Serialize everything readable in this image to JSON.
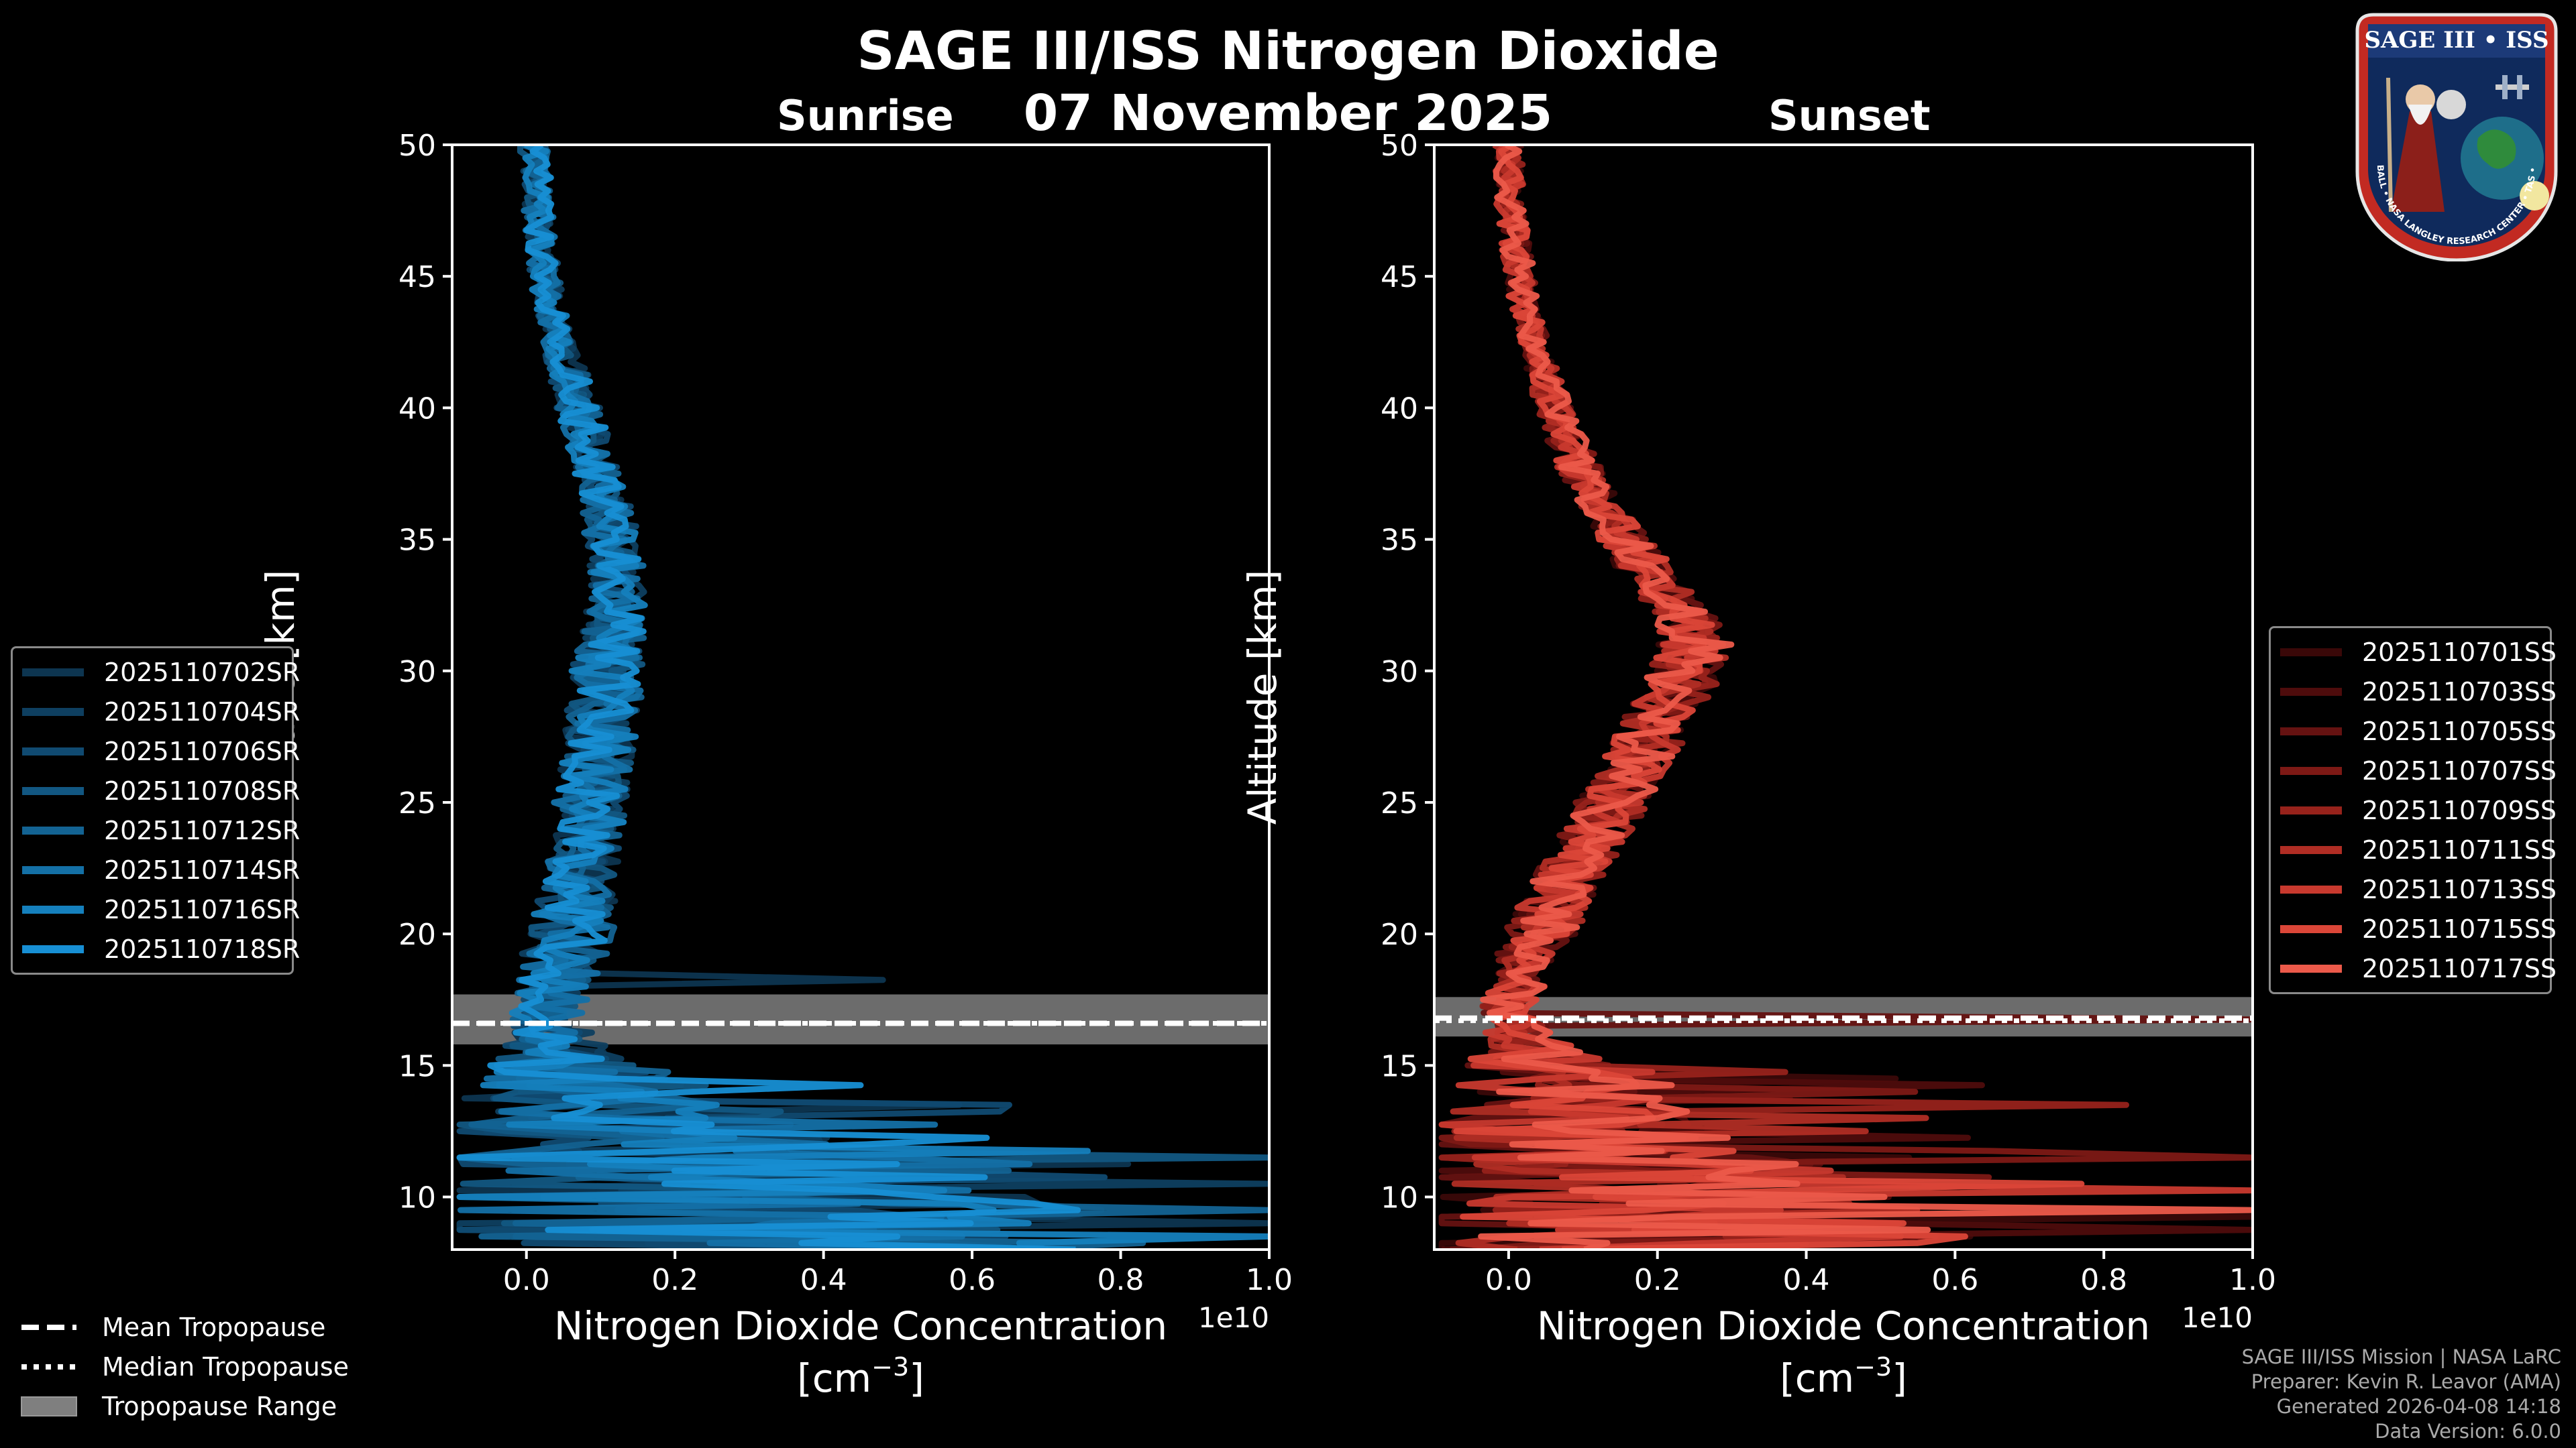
{
  "header": {
    "title": "SAGE III/ISS Nitrogen Dioxide",
    "date": "07 November 2025",
    "sunrise_label": "Sunrise",
    "sunset_label": "Sunset"
  },
  "badge": {
    "text": "SAGE III • ISS",
    "ring_text": "BALL • NASA LANGLEY RESEARCH CENTER • TAS • ESA"
  },
  "footer": {
    "line1": "SAGE III/ISS Mission | NASA LaRC",
    "line2": "Preparer: Kevin R. Leavor (AMA)",
    "line3": "Generated 2026-04-08 14:18",
    "line4": "Data Version: 6.0.0"
  },
  "tropopause_legend": {
    "mean": "Mean Tropopause",
    "median": "Median Tropopause",
    "range": "Tropopause Range"
  },
  "colors": {
    "background": "#000000",
    "sunrise_series": [
      "#0d3550",
      "#0e3f60",
      "#104a71",
      "#125782",
      "#136393",
      "#1470a6",
      "#1580bd",
      "#178fd4"
    ],
    "sunset_series": [
      "#3a0808",
      "#4e0c0c",
      "#651211",
      "#7d1915",
      "#97221b",
      "#b02d24",
      "#c8392e",
      "#db4638",
      "#ec5a4a"
    ],
    "tropopause_band": "#7f7f7f"
  },
  "chart_data": [
    {
      "id": "sunrise",
      "type": "line",
      "title": "Sunrise",
      "xlabel": "Nitrogen Dioxide Concentration",
      "xlabel_units": "[cm",
      "xlabel_exp": "−3",
      "xlabel_close": "]",
      "ylabel": "Altitude [km]",
      "offset_text": "1e10",
      "xlim": [
        -0.1,
        1.0
      ],
      "ylim": [
        8,
        50
      ],
      "xticks": [
        0.0,
        0.2,
        0.4,
        0.6,
        0.8,
        1.0
      ],
      "xtick_labels": [
        "0.0",
        "0.2",
        "0.4",
        "0.6",
        "0.8",
        "1.0"
      ],
      "yticks": [
        10,
        15,
        20,
        25,
        30,
        35,
        40,
        45,
        50
      ],
      "ytick_labels": [
        "10",
        "15",
        "20",
        "25",
        "30",
        "35",
        "40",
        "45",
        "50"
      ],
      "tropopause": {
        "mean": 16.6,
        "median": 16.6,
        "range": [
          15.8,
          17.7
        ]
      },
      "profile_nodes": {
        "altitude": [
          8,
          9,
          10,
          11,
          12,
          13,
          14,
          15,
          16,
          17,
          18,
          19,
          20,
          22,
          24,
          26,
          28,
          30,
          32,
          34,
          36,
          38,
          40,
          42,
          44,
          46,
          48,
          50
        ],
        "mean_no2": [
          0.35,
          0.32,
          0.28,
          0.24,
          0.18,
          0.12,
          0.08,
          0.05,
          0.035,
          0.03,
          0.04,
          0.05,
          0.06,
          0.07,
          0.08,
          0.09,
          0.1,
          0.11,
          0.12,
          0.12,
          0.11,
          0.09,
          0.07,
          0.05,
          0.03,
          0.02,
          0.015,
          0.01
        ],
        "spread": [
          0.5,
          0.5,
          0.45,
          0.4,
          0.3,
          0.22,
          0.16,
          0.1,
          0.06,
          0.05,
          0.05,
          0.06,
          0.06,
          0.05,
          0.05,
          0.05,
          0.05,
          0.05,
          0.04,
          0.04,
          0.035,
          0.03,
          0.03,
          0.025,
          0.02,
          0.02,
          0.02,
          0.02
        ]
      },
      "series": [
        {
          "name": "2025110702SR",
          "spikes": [
            [
              9.0,
              1.0
            ],
            [
              18.2,
              0.48
            ]
          ]
        },
        {
          "name": "2025110704SR",
          "spikes": [
            [
              10.6,
              1.0
            ]
          ]
        },
        {
          "name": "2025110706SR",
          "spikes": [
            [
              13.6,
              0.65
            ]
          ]
        },
        {
          "name": "2025110708SR",
          "spikes": [
            [
              11.5,
              1.0
            ]
          ]
        },
        {
          "name": "2025110712SR",
          "spikes": [
            [
              9.6,
              1.0
            ]
          ]
        },
        {
          "name": "2025110714SR",
          "spikes": [
            [
              12.8,
              0.55
            ]
          ]
        },
        {
          "name": "2025110716SR",
          "spikes": [
            [
              8.6,
              1.0
            ]
          ]
        },
        {
          "name": "2025110718SR",
          "spikes": [
            [
              14.3,
              0.45
            ]
          ]
        }
      ]
    },
    {
      "id": "sunset",
      "type": "line",
      "title": "Sunset",
      "xlabel": "Nitrogen Dioxide Concentration",
      "xlabel_units": "[cm",
      "xlabel_exp": "−3",
      "xlabel_close": "]",
      "ylabel": "Altitude [km]",
      "offset_text": "1e10",
      "xlim": [
        -0.1,
        1.0
      ],
      "ylim": [
        8,
        50
      ],
      "xticks": [
        0.0,
        0.2,
        0.4,
        0.6,
        0.8,
        1.0
      ],
      "xtick_labels": [
        "0.0",
        "0.2",
        "0.4",
        "0.6",
        "0.8",
        "1.0"
      ],
      "yticks": [
        10,
        15,
        20,
        25,
        30,
        35,
        40,
        45,
        50
      ],
      "ytick_labels": [
        "10",
        "15",
        "20",
        "25",
        "30",
        "35",
        "40",
        "45",
        "50"
      ],
      "tropopause": {
        "mean": 16.8,
        "median": 16.7,
        "range": [
          16.1,
          17.6
        ]
      },
      "profile_nodes": {
        "altitude": [
          8,
          9,
          10,
          11,
          12,
          13,
          14,
          15,
          16,
          17,
          18,
          19,
          20,
          22,
          24,
          26,
          28,
          30,
          31,
          32,
          34,
          36,
          38,
          40,
          42,
          44,
          46,
          48,
          50
        ],
        "mean_no2": [
          0.25,
          0.22,
          0.2,
          0.16,
          0.12,
          0.09,
          0.06,
          0.04,
          0.02,
          0.0,
          0.01,
          0.02,
          0.04,
          0.08,
          0.12,
          0.16,
          0.2,
          0.24,
          0.25,
          0.24,
          0.18,
          0.13,
          0.09,
          0.06,
          0.04,
          0.02,
          0.01,
          0.0,
          0.0
        ],
        "spread": [
          0.4,
          0.4,
          0.35,
          0.3,
          0.25,
          0.2,
          0.15,
          0.1,
          0.05,
          0.04,
          0.04,
          0.04,
          0.05,
          0.05,
          0.05,
          0.05,
          0.05,
          0.05,
          0.05,
          0.04,
          0.04,
          0.03,
          0.03,
          0.025,
          0.02,
          0.02,
          0.02,
          0.02,
          0.02
        ]
      },
      "series": [
        {
          "name": "2025110701SS",
          "spikes": [
            [
              9.2,
              1.0
            ]
          ]
        },
        {
          "name": "2025110703SS",
          "spikes": [
            [
              8.8,
              1.0
            ]
          ]
        },
        {
          "name": "2025110705SS",
          "spikes": [
            [
              16.8,
              1.0
            ]
          ]
        },
        {
          "name": "2025110707SS",
          "spikes": [
            [
              11.6,
              1.0
            ]
          ]
        },
        {
          "name": "2025110709SS",
          "spikes": [
            [
              13.6,
              0.83
            ]
          ]
        },
        {
          "name": "2025110711SS",
          "spikes": [
            [
              12.6,
              0.48
            ]
          ]
        },
        {
          "name": "2025110713SS",
          "spikes": [
            [
              10.3,
              1.0
            ]
          ]
        },
        {
          "name": "2025110715SS",
          "spikes": [
            [
              10.6,
              0.77
            ]
          ]
        },
        {
          "name": "2025110717SS",
          "spikes": [
            [
              9.6,
              1.0
            ]
          ]
        }
      ]
    }
  ]
}
